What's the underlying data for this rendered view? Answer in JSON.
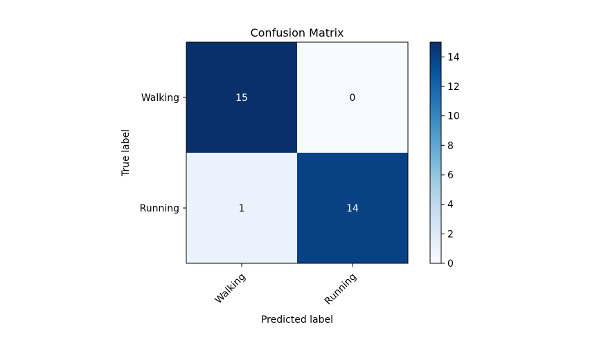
{
  "chart_data": {
    "type": "heatmap",
    "title": "Confusion Matrix",
    "xlabel": "Predicted label",
    "ylabel": "True label",
    "x_categories": [
      "Walking",
      "Running"
    ],
    "y_categories": [
      "Walking",
      "Running"
    ],
    "values": [
      [
        15,
        0
      ],
      [
        1,
        14
      ]
    ],
    "colormap": "Blues",
    "colorbar": {
      "min": 0,
      "max": 15,
      "ticks": [
        0,
        2,
        4,
        6,
        8,
        10,
        12,
        14
      ]
    },
    "grid": false
  }
}
